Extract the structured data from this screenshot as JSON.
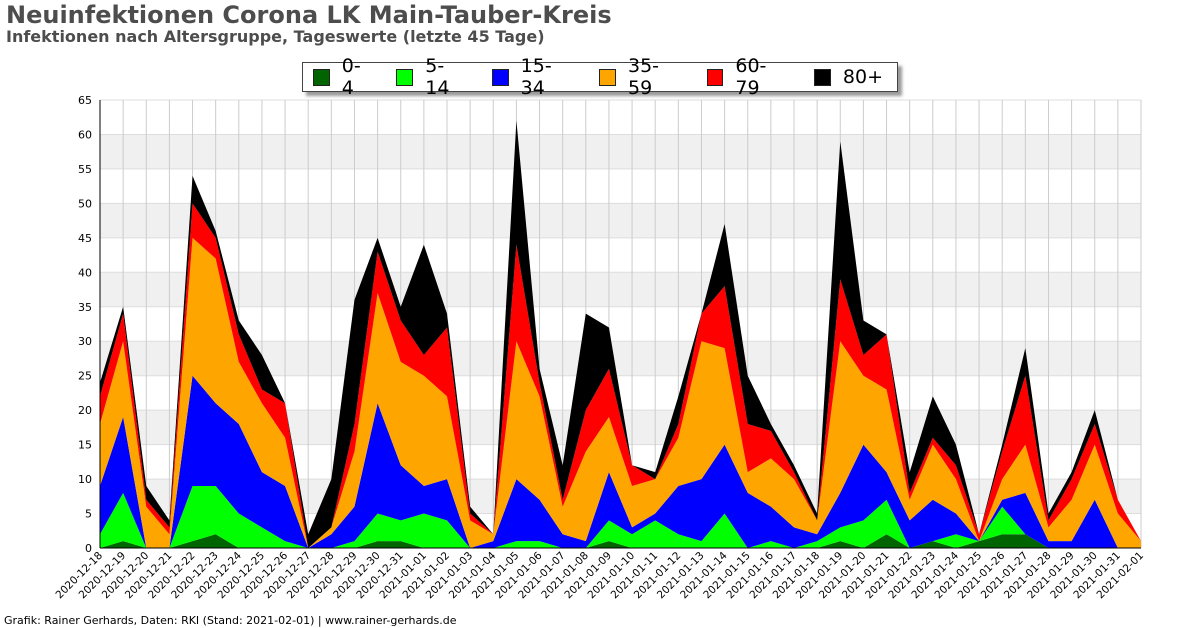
{
  "header": {
    "title": "Neuinfektionen Corona LK Main-Tauber-Kreis",
    "subtitle": "Infektionen nach Altersgruppe, Tageswerte (letzte 45 Tage)"
  },
  "footer": {
    "credit": "Grafik: Rainer Gerhards, Daten: RKI (Stand: 2021-02-01) | www.rainer-gerhards.de"
  },
  "chart_data": {
    "type": "area",
    "stacked": true,
    "title": "Neuinfektionen Corona LK Main-Tauber-Kreis",
    "subtitle": "Infektionen nach Altersgruppe, Tageswerte (letzte 45 Tage)",
    "xlabel": "",
    "ylabel": "",
    "ylim": [
      0,
      65
    ],
    "yticks": [
      0,
      5,
      10,
      15,
      20,
      25,
      30,
      35,
      40,
      45,
      50,
      55,
      60,
      65
    ],
    "grid": true,
    "legend_position": "top-center",
    "x": [
      "2020-12-18",
      "2020-12-19",
      "2020-12-20",
      "2020-12-21",
      "2020-12-22",
      "2020-12-23",
      "2020-12-24",
      "2020-12-25",
      "2020-12-26",
      "2020-12-27",
      "2020-12-28",
      "2020-12-29",
      "2020-12-30",
      "2020-12-31",
      "2021-01-01",
      "2021-01-02",
      "2021-01-03",
      "2021-01-04",
      "2021-01-05",
      "2021-01-06",
      "2021-01-07",
      "2021-01-08",
      "2021-01-09",
      "2021-01-10",
      "2021-01-11",
      "2021-01-12",
      "2021-01-13",
      "2021-01-14",
      "2021-01-15",
      "2021-01-16",
      "2021-01-17",
      "2021-01-18",
      "2021-01-19",
      "2021-01-20",
      "2021-01-21",
      "2021-01-22",
      "2021-01-23",
      "2021-01-24",
      "2021-01-25",
      "2021-01-26",
      "2021-01-27",
      "2021-01-28",
      "2021-01-29",
      "2021-01-30",
      "2021-01-31",
      "2021-02-01"
    ],
    "series": [
      {
        "name": "0-4",
        "color": "#006400",
        "values": [
          0,
          1,
          0,
          0,
          1,
          2,
          0,
          0,
          0,
          0,
          0,
          0,
          1,
          1,
          0,
          0,
          0,
          0,
          0,
          0,
          0,
          0,
          1,
          0,
          0,
          0,
          0,
          0,
          0,
          0,
          0,
          0,
          1,
          0,
          2,
          0,
          1,
          0,
          1,
          2,
          2,
          0,
          0,
          0,
          0,
          0
        ]
      },
      {
        "name": "5-14",
        "color": "#00ff00",
        "values": [
          2,
          7,
          0,
          0,
          8,
          7,
          5,
          3,
          1,
          0,
          0,
          1,
          4,
          3,
          5,
          4,
          0,
          0,
          1,
          1,
          0,
          0,
          3,
          2,
          4,
          2,
          1,
          5,
          0,
          1,
          0,
          1,
          2,
          4,
          5,
          0,
          0,
          2,
          0,
          4,
          0,
          0,
          0,
          0,
          0,
          0
        ]
      },
      {
        "name": "15-34",
        "color": "#0000ff",
        "values": [
          7,
          11,
          0,
          0,
          16,
          12,
          13,
          8,
          8,
          0,
          2,
          5,
          16,
          8,
          4,
          6,
          0,
          1,
          9,
          6,
          2,
          1,
          7,
          1,
          1,
          7,
          9,
          10,
          8,
          5,
          3,
          1,
          5,
          11,
          4,
          4,
          6,
          3,
          0,
          1,
          6,
          1,
          1,
          7,
          0,
          0
        ]
      },
      {
        "name": "35-59",
        "color": "#ffa500",
        "values": [
          9,
          11,
          6,
          2,
          20,
          21,
          9,
          10,
          7,
          0,
          1,
          8,
          16,
          15,
          16,
          12,
          4,
          1,
          20,
          15,
          4,
          13,
          8,
          6,
          5,
          7,
          20,
          14,
          3,
          7,
          7,
          2,
          22,
          10,
          12,
          3,
          8,
          5,
          0,
          3,
          7,
          2,
          6,
          8,
          5,
          1
        ]
      },
      {
        "name": "60-79",
        "color": "#ff0000",
        "values": [
          4,
          4,
          1,
          1,
          5,
          3,
          4,
          2,
          5,
          0,
          0,
          4,
          6,
          6,
          3,
          10,
          1,
          0,
          14,
          2,
          1,
          6,
          7,
          3,
          0,
          2,
          4,
          9,
          7,
          4,
          1,
          0,
          9,
          3,
          8,
          1,
          1,
          2,
          1,
          4,
          10,
          1,
          3,
          3,
          2,
          0
        ]
      },
      {
        "name": "80+",
        "color": "#000000",
        "values": [
          2,
          1,
          2,
          1,
          4,
          1,
          2,
          5,
          0,
          2,
          7,
          18,
          2,
          2,
          16,
          2,
          1,
          0,
          18,
          2,
          5,
          14,
          6,
          0,
          1,
          4,
          0,
          9,
          7,
          1,
          1,
          1,
          20,
          5,
          0,
          3,
          6,
          3,
          0,
          1,
          4,
          1,
          1,
          2,
          0,
          0
        ]
      }
    ]
  }
}
